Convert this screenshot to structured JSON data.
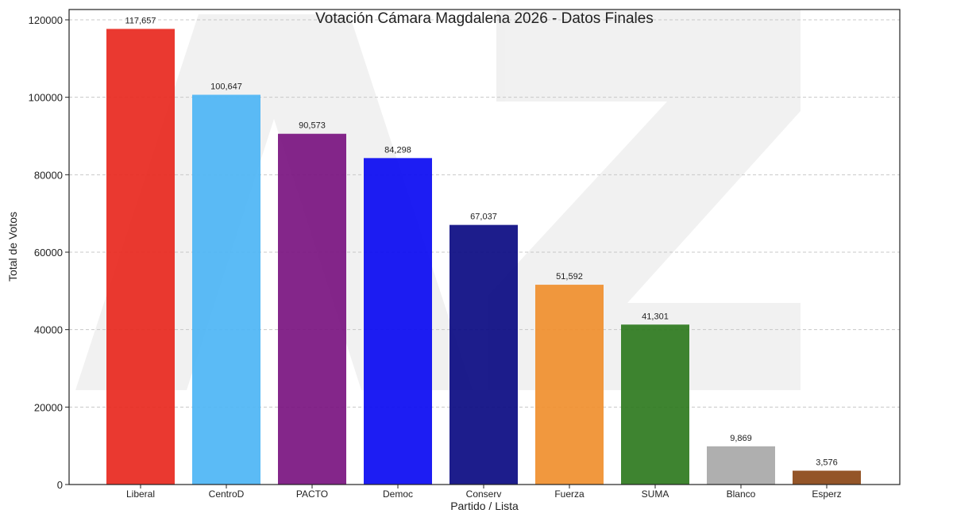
{
  "chart_data": {
    "type": "bar",
    "title": "Votación Cámara Magdalena 2026 - Datos Finales",
    "xlabel": "Partido / Lista",
    "ylabel": "Total de Votos",
    "ylim": [
      0,
      120000
    ],
    "yticks": [
      0,
      20000,
      40000,
      60000,
      80000,
      100000,
      120000
    ],
    "grid": "horizontal dashed",
    "categories": [
      "Liberal",
      "CentroD",
      "PACTO",
      "Democ",
      "Conserv",
      "Fuerza",
      "SUMA",
      "Blanco",
      "Esperz"
    ],
    "values": [
      117657,
      100647,
      90573,
      84298,
      67037,
      51592,
      41301,
      9869,
      3576
    ],
    "value_labels": [
      "117,657",
      "100,647",
      "90,573",
      "84,298",
      "67,037",
      "51,592",
      "41,301",
      "9,869",
      "3,576"
    ],
    "colors": [
      "#e8281e",
      "#4db5f5",
      "#7a1480",
      "#0a0af2",
      "#0a0a82",
      "#f08f2e",
      "#2e7a1e",
      "#a8a8a8",
      "#8b4716"
    ],
    "watermark": "AZ logo"
  }
}
